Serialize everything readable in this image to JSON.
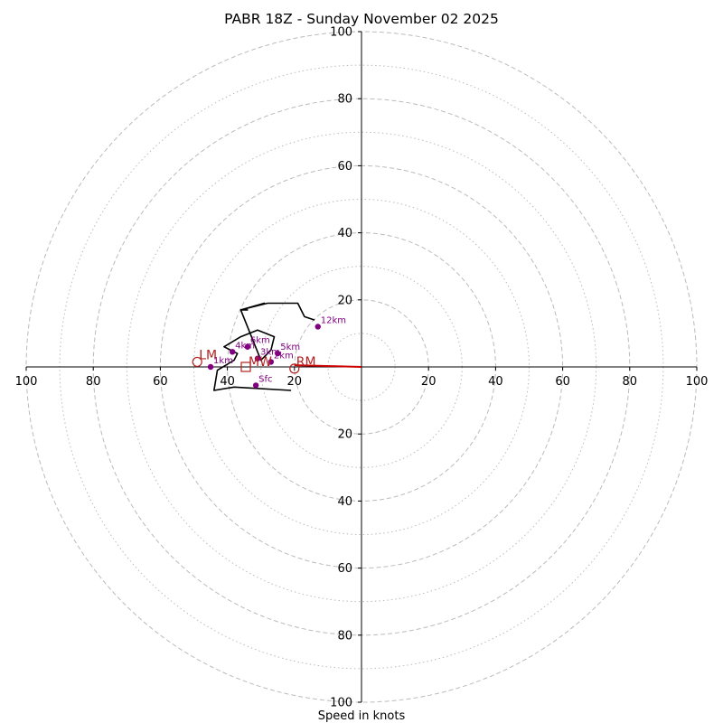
{
  "chart_data": {
    "type": "hodograph",
    "title": "PABR 18Z - Sunday November 02 2025",
    "xlabel": "Speed in knots",
    "range": [
      -100,
      100
    ],
    "rings_major": [
      20,
      40,
      60,
      80,
      100
    ],
    "rings_minor": [
      10,
      30,
      50,
      70,
      90
    ],
    "tick_labels_x": [
      {
        "v": -100,
        "label": "100"
      },
      {
        "v": -80,
        "label": "80"
      },
      {
        "v": -60,
        "label": "60"
      },
      {
        "v": -40,
        "label": "40"
      },
      {
        "v": -20,
        "label": "20"
      },
      {
        "v": 20,
        "label": "20"
      },
      {
        "v": 40,
        "label": "40"
      },
      {
        "v": 60,
        "label": "60"
      },
      {
        "v": 80,
        "label": "80"
      },
      {
        "v": 100,
        "label": "100"
      }
    ],
    "tick_labels_y": [
      {
        "v": 100,
        "label": "100"
      },
      {
        "v": 80,
        "label": "80"
      },
      {
        "v": 60,
        "label": "60"
      },
      {
        "v": 40,
        "label": "40"
      },
      {
        "v": 20,
        "label": "20"
      },
      {
        "v": -20,
        "label": "20"
      },
      {
        "v": -40,
        "label": "40"
      },
      {
        "v": -60,
        "label": "60"
      },
      {
        "v": -80,
        "label": "80"
      },
      {
        "v": -100,
        "label": "100"
      }
    ],
    "wind_trace": {
      "u": [
        -21,
        -38,
        -44,
        -43,
        -38,
        -37,
        -41,
        -36,
        -31,
        -26,
        -27,
        -30,
        -36,
        -34,
        -36,
        -29,
        -36,
        -28,
        -19,
        -17,
        -14
      ],
      "v": [
        -7,
        -6,
        -7,
        -1,
        2,
        4,
        6,
        9,
        11,
        9,
        5,
        2,
        17,
        17,
        17,
        19,
        17,
        19,
        19,
        15,
        14
      ]
    },
    "height_markers": [
      {
        "label": "Sfc",
        "u": -31.5,
        "v": -5.5
      },
      {
        "label": "1km",
        "u": -45,
        "v": 0
      },
      {
        "label": "2km",
        "u": -27,
        "v": 1.5
      },
      {
        "label": "3km",
        "u": -31,
        "v": 2.5
      },
      {
        "label": "4km",
        "u": -38.5,
        "v": 4.5
      },
      {
        "label": "5km",
        "u": -25,
        "v": 4
      },
      {
        "label": "6km",
        "u": -34,
        "v": 6
      },
      {
        "label": "12km",
        "u": -13,
        "v": 12
      }
    ],
    "storm_motion": {
      "RM": {
        "label": "RM",
        "u": -20,
        "v": -0.5
      },
      "LM": {
        "label": "LM",
        "u": -49,
        "v": 1.5
      },
      "MW": {
        "label": "MW",
        "u": -34.5,
        "v": 0
      }
    },
    "shear_vector": {
      "u1": 0,
      "v1": 0,
      "u2": -20,
      "v2": 0.5
    },
    "colors": {
      "ring": "#bbbbbb",
      "axis": "#000000",
      "trace": "#000000",
      "marker": "#800080",
      "storm": "#b22222",
      "shear": "#cc0000"
    }
  }
}
